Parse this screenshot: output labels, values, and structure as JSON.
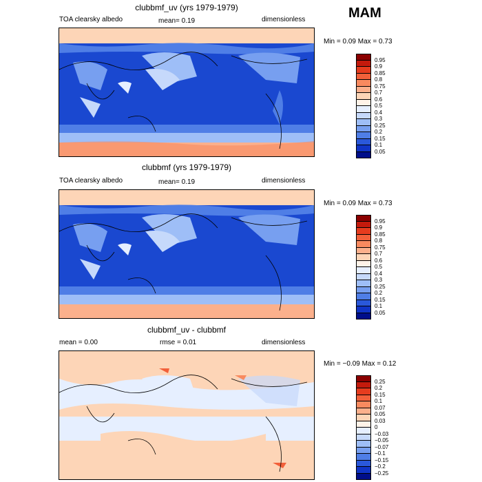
{
  "season": "MAM",
  "panels": [
    {
      "title": "clubbmf_uv (yrs 1979-1979)",
      "left_label": "TOA clearsky albedo",
      "mean_text": "mean=   0.19",
      "right_label": "dimensionless",
      "minmax": "Min =    0.09  Max =    0.73",
      "colorbar_labels": [
        "0.95",
        "0.9",
        "0.85",
        "0.8",
        "0.75",
        "0.7",
        "0.6",
        "0.5",
        "0.4",
        "0.3",
        "0.25",
        "0.2",
        "0.15",
        "0.1",
        "0.05"
      ],
      "colors": [
        "#8b0000",
        "#c41a0c",
        "#e63c1e",
        "#f2603a",
        "#f88a5f",
        "#fbb08c",
        "#fdd5b7",
        "#fff3e8",
        "#e6efff",
        "#c6d9fb",
        "#9ebef7",
        "#779ff0",
        "#4f7ee6",
        "#2a58da",
        "#1034c6",
        "#000e8a"
      ]
    },
    {
      "title": "clubbmf (yrs 1979-1979)",
      "left_label": "TOA clearsky albedo",
      "mean_text": "mean=   0.19",
      "right_label": "dimensionless",
      "minmax": "Min =    0.09  Max =    0.73",
      "colorbar_labels": [
        "0.95",
        "0.9",
        "0.85",
        "0.8",
        "0.75",
        "0.7",
        "0.6",
        "0.5",
        "0.4",
        "0.3",
        "0.25",
        "0.2",
        "0.15",
        "0.1",
        "0.05"
      ],
      "colors": [
        "#8b0000",
        "#c41a0c",
        "#e63c1e",
        "#f2603a",
        "#f88a5f",
        "#fbb08c",
        "#fdd5b7",
        "#fff3e8",
        "#e6efff",
        "#c6d9fb",
        "#9ebef7",
        "#779ff0",
        "#4f7ee6",
        "#2a58da",
        "#1034c6",
        "#000e8a"
      ]
    },
    {
      "title": "clubbmf_uv - clubbmf",
      "left_label": "mean =    0.00",
      "mean_text": "rmse =    0.01",
      "right_label": "dimensionless",
      "minmax": "Min =   −0.09  Max =    0.12",
      "colorbar_labels": [
        "0.25",
        "0.2",
        "0.15",
        "0.1",
        "0.07",
        "0.05",
        "0.03",
        "0",
        "−0.03",
        "−0.05",
        "−0.07",
        "−0.1",
        "−0.15",
        "−0.2",
        "−0.25"
      ],
      "colors": [
        "#8b0000",
        "#c41a0c",
        "#e63c1e",
        "#f2603a",
        "#f88a5f",
        "#fbb08c",
        "#fdd5b7",
        "#fff3e8",
        "#e6efff",
        "#c6d9fb",
        "#9ebef7",
        "#779ff0",
        "#4f7ee6",
        "#2a58da",
        "#1034c6",
        "#000e8a"
      ]
    }
  ],
  "chart_data": [
    {
      "type": "heatmap",
      "title": "clubbmf_uv (yrs 1979-1979)",
      "variable": "TOA clearsky albedo",
      "units": "dimensionless",
      "mean": 0.19,
      "min": 0.09,
      "max": 0.73,
      "levels": [
        0.05,
        0.1,
        0.15,
        0.2,
        0.25,
        0.3,
        0.4,
        0.5,
        0.6,
        0.7,
        0.75,
        0.8,
        0.85,
        0.9,
        0.95
      ]
    },
    {
      "type": "heatmap",
      "title": "clubbmf (yrs 1979-1979)",
      "variable": "TOA clearsky albedo",
      "units": "dimensionless",
      "mean": 0.19,
      "min": 0.09,
      "max": 0.73,
      "levels": [
        0.05,
        0.1,
        0.15,
        0.2,
        0.25,
        0.3,
        0.4,
        0.5,
        0.6,
        0.7,
        0.75,
        0.8,
        0.85,
        0.9,
        0.95
      ]
    },
    {
      "type": "heatmap",
      "title": "clubbmf_uv - clubbmf",
      "units": "dimensionless",
      "mean": 0.0,
      "rmse": 0.01,
      "min": -0.09,
      "max": 0.12,
      "levels": [
        -0.25,
        -0.2,
        -0.15,
        -0.1,
        -0.07,
        -0.05,
        -0.03,
        0,
        0.03,
        0.05,
        0.07,
        0.1,
        0.15,
        0.2,
        0.25
      ]
    }
  ]
}
